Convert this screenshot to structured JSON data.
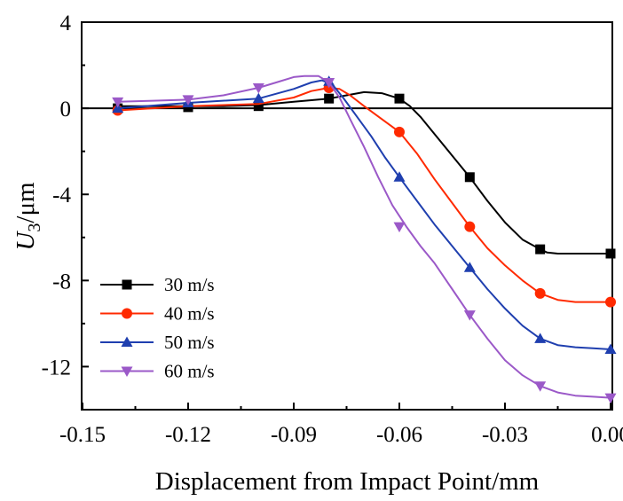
{
  "chart_data": {
    "type": "line",
    "xlabel": "Displacement from Impact Point/mm",
    "ylabel_main": "U",
    "ylabel_sub": "3",
    "ylabel_unit": "/μm",
    "xlim": [
      -0.15,
      0.005
    ],
    "ylim": [
      -14,
      4
    ],
    "xticks": [
      -0.15,
      -0.12,
      -0.09,
      -0.06,
      -0.03,
      0.0
    ],
    "xtick_labels": [
      "-0.15",
      "-0.12",
      "-0.09",
      "-0.06",
      "-0.03",
      "0.00"
    ],
    "yticks": [
      -12,
      -8,
      -4,
      0,
      4
    ],
    "ytick_labels": [
      "-12",
      "-8",
      "-4",
      "0",
      "4"
    ],
    "zero_line": true,
    "grid": false,
    "legend_position": "bottom-left",
    "series": [
      {
        "name": "30 m/s",
        "color": "#000000",
        "marker": "square",
        "x": [
          -0.14,
          -0.13,
          -0.12,
          -0.11,
          -0.1,
          -0.09,
          -0.08,
          -0.075,
          -0.07,
          -0.065,
          -0.06,
          -0.057,
          -0.054,
          -0.05,
          -0.045,
          -0.04,
          -0.035,
          -0.03,
          -0.025,
          -0.02,
          -0.018,
          -0.015,
          -0.01,
          -0.005,
          0.0
        ],
        "y": [
          0.1,
          0.1,
          0.1,
          0.1,
          0.15,
          0.3,
          0.45,
          0.6,
          0.75,
          0.7,
          0.45,
          0.1,
          -0.4,
          -1.2,
          -2.2,
          -3.2,
          -4.3,
          -5.3,
          -6.1,
          -6.55,
          -6.7,
          -6.75,
          -6.75,
          -6.75,
          -6.75
        ],
        "markers_x": [
          -0.14,
          -0.12,
          -0.1,
          -0.08,
          -0.06,
          -0.04,
          -0.02,
          0.0
        ],
        "markers_y": [
          0.0,
          0.05,
          0.1,
          0.45,
          0.45,
          -3.2,
          -6.55,
          -6.75
        ]
      },
      {
        "name": "40 m/s",
        "color": "#ff2a00",
        "marker": "circle",
        "x": [
          -0.14,
          -0.12,
          -0.1,
          -0.09,
          -0.085,
          -0.08,
          -0.077,
          -0.074,
          -0.07,
          -0.065,
          -0.06,
          -0.055,
          -0.05,
          -0.045,
          -0.04,
          -0.035,
          -0.03,
          -0.025,
          -0.02,
          -0.015,
          -0.01,
          -0.005,
          0.0
        ],
        "y": [
          -0.1,
          0.1,
          0.2,
          0.5,
          0.8,
          0.95,
          0.9,
          0.6,
          0.1,
          -0.5,
          -1.1,
          -2.1,
          -3.3,
          -4.4,
          -5.5,
          -6.5,
          -7.3,
          -8.0,
          -8.6,
          -8.9,
          -9.0,
          -9.0,
          -9.0
        ],
        "markers_x": [
          -0.14,
          -0.08,
          -0.06,
          -0.04,
          -0.02,
          0.0
        ],
        "markers_y": [
          -0.1,
          0.95,
          -1.1,
          -5.5,
          -8.6,
          -9.0
        ]
      },
      {
        "name": "50 m/s",
        "color": "#1f3faf",
        "marker": "triangle-up",
        "x": [
          -0.14,
          -0.12,
          -0.1,
          -0.09,
          -0.085,
          -0.082,
          -0.079,
          -0.076,
          -0.072,
          -0.068,
          -0.064,
          -0.06,
          -0.055,
          -0.05,
          -0.045,
          -0.04,
          -0.035,
          -0.03,
          -0.025,
          -0.02,
          -0.015,
          -0.01,
          -0.005,
          0.0
        ],
        "y": [
          0.0,
          0.25,
          0.45,
          0.9,
          1.2,
          1.3,
          1.1,
          0.5,
          -0.4,
          -1.3,
          -2.3,
          -3.2,
          -4.3,
          -5.4,
          -6.4,
          -7.4,
          -8.4,
          -9.3,
          -10.1,
          -10.7,
          -11.0,
          -11.1,
          -11.15,
          -11.2
        ],
        "markers_x": [
          -0.14,
          -0.12,
          -0.1,
          -0.08,
          -0.06,
          -0.04,
          -0.02,
          0.0
        ],
        "markers_y": [
          0.0,
          0.25,
          0.45,
          1.25,
          -3.2,
          -7.4,
          -10.7,
          -11.2
        ]
      },
      {
        "name": "60 m/s",
        "color": "#9b59c8",
        "marker": "triangle-down",
        "x": [
          -0.14,
          -0.13,
          -0.12,
          -0.11,
          -0.1,
          -0.095,
          -0.09,
          -0.087,
          -0.083,
          -0.08,
          -0.077,
          -0.074,
          -0.07,
          -0.066,
          -0.062,
          -0.058,
          -0.054,
          -0.05,
          -0.045,
          -0.04,
          -0.035,
          -0.03,
          -0.025,
          -0.02,
          -0.015,
          -0.01,
          -0.005,
          0.0
        ],
        "y": [
          0.3,
          0.35,
          0.4,
          0.6,
          0.95,
          1.2,
          1.45,
          1.5,
          1.5,
          1.2,
          0.5,
          -0.5,
          -1.8,
          -3.2,
          -4.5,
          -5.5,
          -6.4,
          -7.2,
          -8.4,
          -9.6,
          -10.7,
          -11.7,
          -12.4,
          -12.9,
          -13.2,
          -13.35,
          -13.4,
          -13.45
        ],
        "markers_x": [
          -0.14,
          -0.12,
          -0.1,
          -0.08,
          -0.06,
          -0.04,
          -0.02,
          0.0
        ],
        "markers_y": [
          0.3,
          0.4,
          0.95,
          1.2,
          -5.5,
          -9.6,
          -12.9,
          -13.45
        ]
      }
    ]
  }
}
